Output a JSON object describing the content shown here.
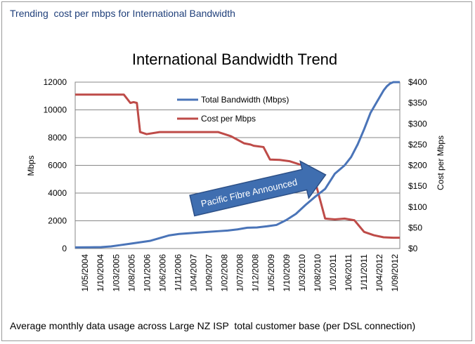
{
  "header_caption": "Trending  cost per mbps for International Bandwidth",
  "footer_caption": "Average monthly data usage across Large NZ ISP  total customer base (per DSL connection)",
  "colors": {
    "bandwidth": "#4a74b8",
    "cost": "#be4b48",
    "arrow_fill": "#3f6eb0",
    "arrow_stroke": "#2c4f86",
    "grid": "#878787"
  },
  "chart_data": {
    "type": "line",
    "title": "International Bandwidth Trend",
    "ylabel": "Mbps",
    "y2label": "Cost per Mbps",
    "ylim": [
      0,
      12000
    ],
    "y2lim": [
      0,
      400
    ],
    "yticks": [
      0,
      2000,
      4000,
      6000,
      8000,
      10000,
      12000
    ],
    "y2ticks": [
      "$0",
      "$50",
      "$100",
      "$150",
      "$200",
      "$250",
      "$300",
      "$350",
      "$400"
    ],
    "grid": true,
    "legend_position": "top-center",
    "xlim": [
      0,
      100
    ],
    "categories": [
      "1/05/2004",
      "1/10/2004",
      "1/03/2005",
      "1/08/2005",
      "1/01/2006",
      "1/06/2006",
      "1/11/2006",
      "1/04/2007",
      "1/09/2007",
      "1/02/2008",
      "1/07/2008",
      "1/12/2008",
      "1/05/2009",
      "1/10/2009",
      "1/03/2010",
      "1/08/2010",
      "1/01/2011",
      "1/06/2011",
      "1/11/2011",
      "1/04/2012",
      "1/09/2012"
    ],
    "series": [
      {
        "name": "Total Bandwidth (Mbps)",
        "axis": "left",
        "x": [
          0,
          4,
          8,
          11,
          14,
          17,
          20,
          23,
          26,
          29,
          32,
          35,
          38,
          41,
          44,
          47,
          50,
          53,
          56,
          59,
          62,
          65,
          68,
          71,
          74,
          77,
          80,
          83,
          85,
          87,
          89,
          90,
          91,
          93,
          95,
          96,
          97,
          98,
          99,
          100
        ],
        "y": [
          80,
          90,
          100,
          150,
          250,
          350,
          450,
          550,
          750,
          950,
          1050,
          1100,
          1150,
          1200,
          1250,
          1300,
          1380,
          1500,
          1520,
          1600,
          1700,
          2050,
          2500,
          3150,
          3750,
          4300,
          5400,
          6000,
          6600,
          7500,
          8600,
          9200,
          9800,
          10600,
          11400,
          11700,
          11900,
          12000,
          12000,
          12000
        ]
      },
      {
        "name": "Cost per Mbps",
        "axis": "right",
        "x": [
          0,
          4,
          8,
          12,
          14,
          15,
          17,
          18,
          19,
          20,
          22,
          26,
          30,
          34,
          38,
          42,
          44,
          48,
          52,
          54,
          55,
          58,
          60,
          63,
          64,
          66,
          70,
          73,
          75,
          77,
          80,
          83,
          86,
          89,
          92,
          95,
          98,
          100
        ],
        "y": [
          370,
          370,
          370,
          370,
          370,
          370,
          350,
          352,
          350,
          280,
          275,
          280,
          280,
          280,
          280,
          280,
          280,
          270,
          253,
          250,
          247,
          244,
          214,
          213,
          212,
          210,
          200,
          188,
          130,
          72,
          70,
          72,
          68,
          40,
          32,
          27,
          26,
          26
        ]
      }
    ],
    "annotations": [
      {
        "text": "Pacific Fibre Announced",
        "x": 74,
        "y": 3300
      }
    ]
  }
}
